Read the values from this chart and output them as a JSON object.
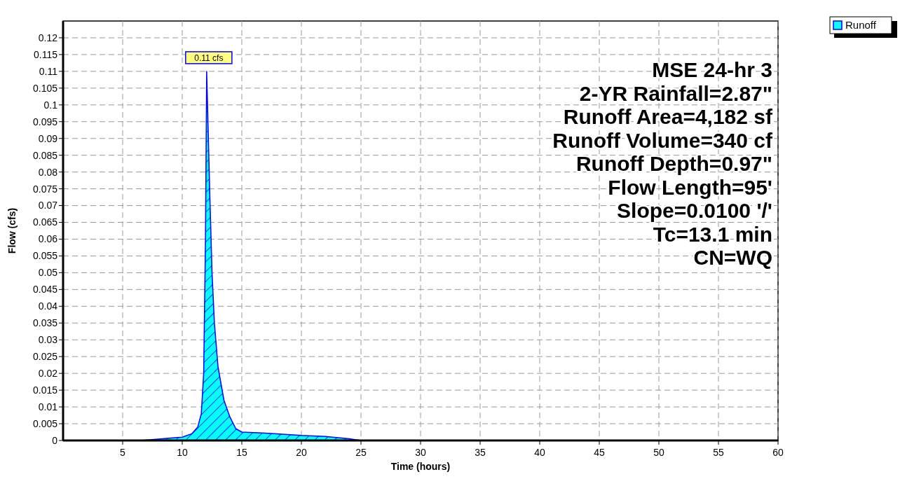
{
  "chart_data": {
    "type": "area",
    "xlabel": "Time  (hours)",
    "ylabel": "Flow  (cfs)",
    "x": [
      0,
      5,
      6.5,
      8,
      10,
      10.8,
      11.3,
      11.6,
      11.8,
      11.95,
      12.05,
      12.3,
      12.5,
      12.7,
      13,
      13.5,
      14,
      14.5,
      15,
      17,
      20,
      22,
      24,
      25,
      60
    ],
    "series": [
      {
        "name": "Runoff",
        "color": "#00ffff",
        "values": [
          0,
          0,
          0,
          0.0004,
          0.001,
          0.002,
          0.004,
          0.008,
          0.02,
          0.06,
          0.11,
          0.075,
          0.05,
          0.035,
          0.022,
          0.012,
          0.007,
          0.0035,
          0.0025,
          0.0022,
          0.0015,
          0.0012,
          0.0005,
          0,
          0
        ]
      }
    ],
    "xlim": [
      0,
      60
    ],
    "xticks": [
      5,
      10,
      15,
      20,
      25,
      30,
      35,
      40,
      45,
      50,
      55,
      60
    ],
    "ylim": [
      0,
      0.125
    ],
    "yticks": [
      0,
      0.005,
      0.01,
      0.015,
      0.02,
      0.025,
      0.03,
      0.035,
      0.04,
      0.045,
      0.05,
      0.055,
      0.06,
      0.065,
      0.07,
      0.075,
      0.08,
      0.085,
      0.09,
      0.095,
      0.1,
      0.105,
      0.11,
      0.115,
      0.12
    ],
    "grid": true,
    "legend": "top right",
    "annotations": [
      {
        "text": "0.11 cfs",
        "x": 12.05,
        "y": 0.11
      },
      "MSE 24-hr 3",
      "2-YR Rainfall=2.87\"",
      "Runoff Area=4,182 sf",
      "Runoff Volume=340 cf",
      "Runoff Depth=0.97\"",
      "Flow Length=95'",
      "Slope=0.0100 '/'",
      "Tc=13.1 min",
      "CN=WQ"
    ]
  }
}
